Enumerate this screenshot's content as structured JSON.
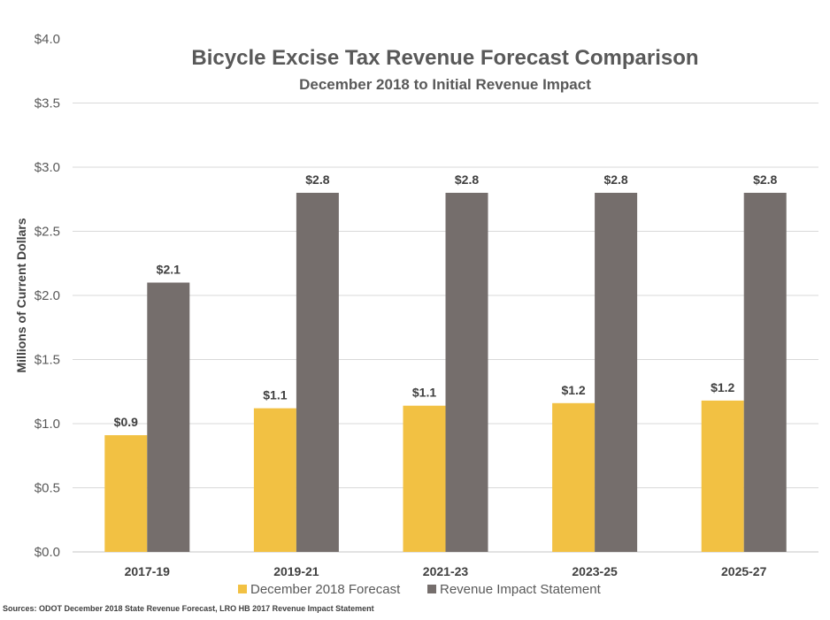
{
  "chart_data": {
    "type": "bar",
    "title": "Bicycle Excise Tax Revenue Forecast Comparison",
    "subtitle": "December 2018 to Initial Revenue Impact",
    "xlabel": "",
    "ylabel": "Millions of Current Dollars",
    "ylim": [
      0,
      4.0
    ],
    "ytick_step": 0.5,
    "ytick_labels": [
      "$0.0",
      "$0.5",
      "$1.0",
      "$1.5",
      "$2.0",
      "$2.5",
      "$3.0",
      "$3.5",
      "$4.0"
    ],
    "grid": true,
    "legend_position": "bottom",
    "categories": [
      "2017-19",
      "2019-21",
      "2021-23",
      "2023-25",
      "2025-27"
    ],
    "series": [
      {
        "name": "December 2018 Forecast",
        "color": "#f2c143",
        "values": [
          0.91,
          1.12,
          1.14,
          1.16,
          1.18
        ],
        "labels": [
          "$0.9",
          "$1.1",
          "$1.1",
          "$1.2",
          "$1.2"
        ]
      },
      {
        "name": "Revenue Impact Statement",
        "color": "#756e6c",
        "values": [
          2.1,
          2.8,
          2.8,
          2.8,
          2.8
        ],
        "labels": [
          "$2.1",
          "$2.8",
          "$2.8",
          "$2.8",
          "$2.8"
        ]
      }
    ],
    "source_note": "Sources: ODOT December 2018 State Revenue Forecast, LRO HB 2017 Revenue Impact Statement"
  }
}
